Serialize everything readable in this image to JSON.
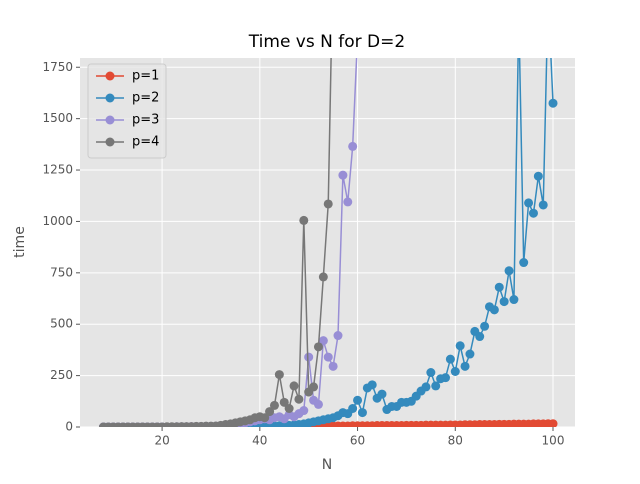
{
  "chart_data": {
    "type": "line",
    "title": "Time vs N for D=2",
    "xlabel": "N",
    "ylabel": "time",
    "xlim": [
      3.2,
      104.5
    ],
    "ylim": [
      0,
      1795
    ],
    "xticks": [
      20,
      40,
      60,
      80,
      100
    ],
    "yticks": [
      0,
      250,
      500,
      750,
      1000,
      1250,
      1500,
      1750
    ],
    "grid": true,
    "legend": "upper left",
    "series": [
      {
        "name": "p=1",
        "color": "#E24A33",
        "x": [
          8,
          9,
          10,
          11,
          12,
          13,
          14,
          15,
          16,
          17,
          18,
          19,
          20,
          21,
          22,
          23,
          24,
          25,
          26,
          27,
          28,
          29,
          30,
          31,
          32,
          33,
          34,
          35,
          36,
          37,
          38,
          39,
          40,
          41,
          42,
          43,
          44,
          45,
          46,
          47,
          48,
          49,
          50,
          51,
          52,
          53,
          54,
          55,
          56,
          57,
          58,
          59,
          60,
          61,
          62,
          63,
          64,
          65,
          66,
          67,
          68,
          69,
          70,
          71,
          72,
          73,
          74,
          75,
          76,
          77,
          78,
          79,
          80,
          81,
          82,
          83,
          84,
          85,
          86,
          87,
          88,
          89,
          90,
          91,
          92,
          93,
          94,
          95,
          96,
          97,
          98,
          99,
          100
        ],
        "values": [
          0,
          0,
          0,
          0,
          0,
          0,
          0,
          0,
          0,
          0,
          0,
          0,
          0,
          0,
          0,
          0,
          0,
          0,
          1,
          1,
          1,
          1,
          1,
          1,
          1,
          1,
          1,
          1,
          2,
          2,
          2,
          2,
          2,
          3,
          3,
          3,
          3,
          3,
          3,
          4,
          4,
          4,
          4,
          4,
          4,
          5,
          5,
          5,
          5,
          5,
          5,
          6,
          6,
          6,
          6,
          6,
          7,
          7,
          7,
          7,
          7,
          7,
          8,
          8,
          8,
          8,
          9,
          9,
          9,
          9,
          9,
          10,
          10,
          10,
          11,
          11,
          11,
          12,
          12,
          12,
          12,
          13,
          13,
          13,
          14,
          14,
          14,
          14,
          15,
          15,
          15,
          16,
          16
        ]
      },
      {
        "name": "p=2",
        "color": "#348ABD",
        "x": [
          8,
          9,
          10,
          11,
          12,
          13,
          14,
          15,
          16,
          17,
          18,
          19,
          20,
          21,
          22,
          23,
          24,
          25,
          26,
          27,
          28,
          29,
          30,
          31,
          32,
          33,
          34,
          35,
          36,
          37,
          38,
          39,
          40,
          41,
          42,
          43,
          44,
          45,
          46,
          47,
          48,
          49,
          50,
          51,
          52,
          53,
          54,
          55,
          56,
          57,
          58,
          59,
          60,
          61,
          62,
          63,
          64,
          65,
          66,
          67,
          68,
          69,
          70,
          71,
          72,
          73,
          74,
          75,
          76,
          77,
          78,
          79,
          80,
          81,
          82,
          83,
          84,
          85,
          86,
          87,
          88,
          89,
          90,
          91,
          92,
          93,
          94,
          95,
          96,
          97,
          98,
          99,
          100
        ],
        "values": [
          0,
          0,
          0,
          0,
          0,
          0,
          0,
          0,
          0,
          0,
          0,
          0,
          0,
          0,
          0,
          0,
          0,
          0,
          0,
          0,
          0,
          0,
          0,
          1,
          1,
          1,
          1,
          2,
          2,
          2,
          2,
          3,
          3,
          4,
          4,
          5,
          6,
          7,
          8,
          10,
          12,
          15,
          20,
          25,
          30,
          35,
          40,
          45,
          55,
          70,
          65,
          90,
          130,
          70,
          190,
          205,
          140,
          160,
          85,
          100,
          100,
          120,
          120,
          125,
          150,
          175,
          195,
          265,
          200,
          235,
          240,
          330,
          270,
          395,
          295,
          355,
          465,
          440,
          490,
          585,
          570,
          680,
          610,
          760,
          620,
          2000,
          800,
          1090,
          1040,
          1220,
          1080,
          2100,
          1575
        ]
      },
      {
        "name": "p=3",
        "color": "#988ED5",
        "x": [
          8,
          9,
          10,
          11,
          12,
          13,
          14,
          15,
          16,
          17,
          18,
          19,
          20,
          21,
          22,
          23,
          24,
          25,
          26,
          27,
          28,
          29,
          30,
          31,
          32,
          33,
          34,
          35,
          36,
          37,
          38,
          39,
          40,
          41,
          42,
          43,
          44,
          45,
          46,
          47,
          48,
          49,
          50,
          51,
          52,
          53,
          54,
          55,
          56,
          57,
          58,
          59,
          60
        ],
        "values": [
          0,
          0,
          0,
          0,
          0,
          0,
          0,
          0,
          0,
          0,
          0,
          0,
          0,
          0,
          0,
          1,
          1,
          1,
          2,
          2,
          2,
          3,
          3,
          4,
          5,
          7,
          9,
          12,
          15,
          20,
          25,
          30,
          35,
          40,
          35,
          45,
          50,
          40,
          60,
          50,
          65,
          80,
          340,
          130,
          110,
          420,
          340,
          295,
          445,
          1225,
          1095,
          1365,
          1900
        ]
      },
      {
        "name": "p=4",
        "color": "#777777",
        "x": [
          8,
          9,
          10,
          11,
          12,
          13,
          14,
          15,
          16,
          17,
          18,
          19,
          20,
          21,
          22,
          23,
          24,
          25,
          26,
          27,
          28,
          29,
          30,
          31,
          32,
          33,
          34,
          35,
          36,
          37,
          38,
          39,
          40,
          41,
          42,
          43,
          44,
          45,
          46,
          47,
          48,
          49,
          50,
          51,
          52,
          53,
          54,
          55
        ],
        "values": [
          0,
          0,
          0,
          0,
          0,
          0,
          0,
          0,
          0,
          0,
          0,
          0,
          0,
          1,
          1,
          1,
          2,
          2,
          2,
          3,
          3,
          4,
          4,
          5,
          8,
          12,
          15,
          20,
          25,
          30,
          35,
          45,
          50,
          45,
          75,
          105,
          255,
          120,
          90,
          200,
          135,
          1005,
          170,
          195,
          390,
          730,
          1085,
          2300
        ]
      }
    ]
  }
}
